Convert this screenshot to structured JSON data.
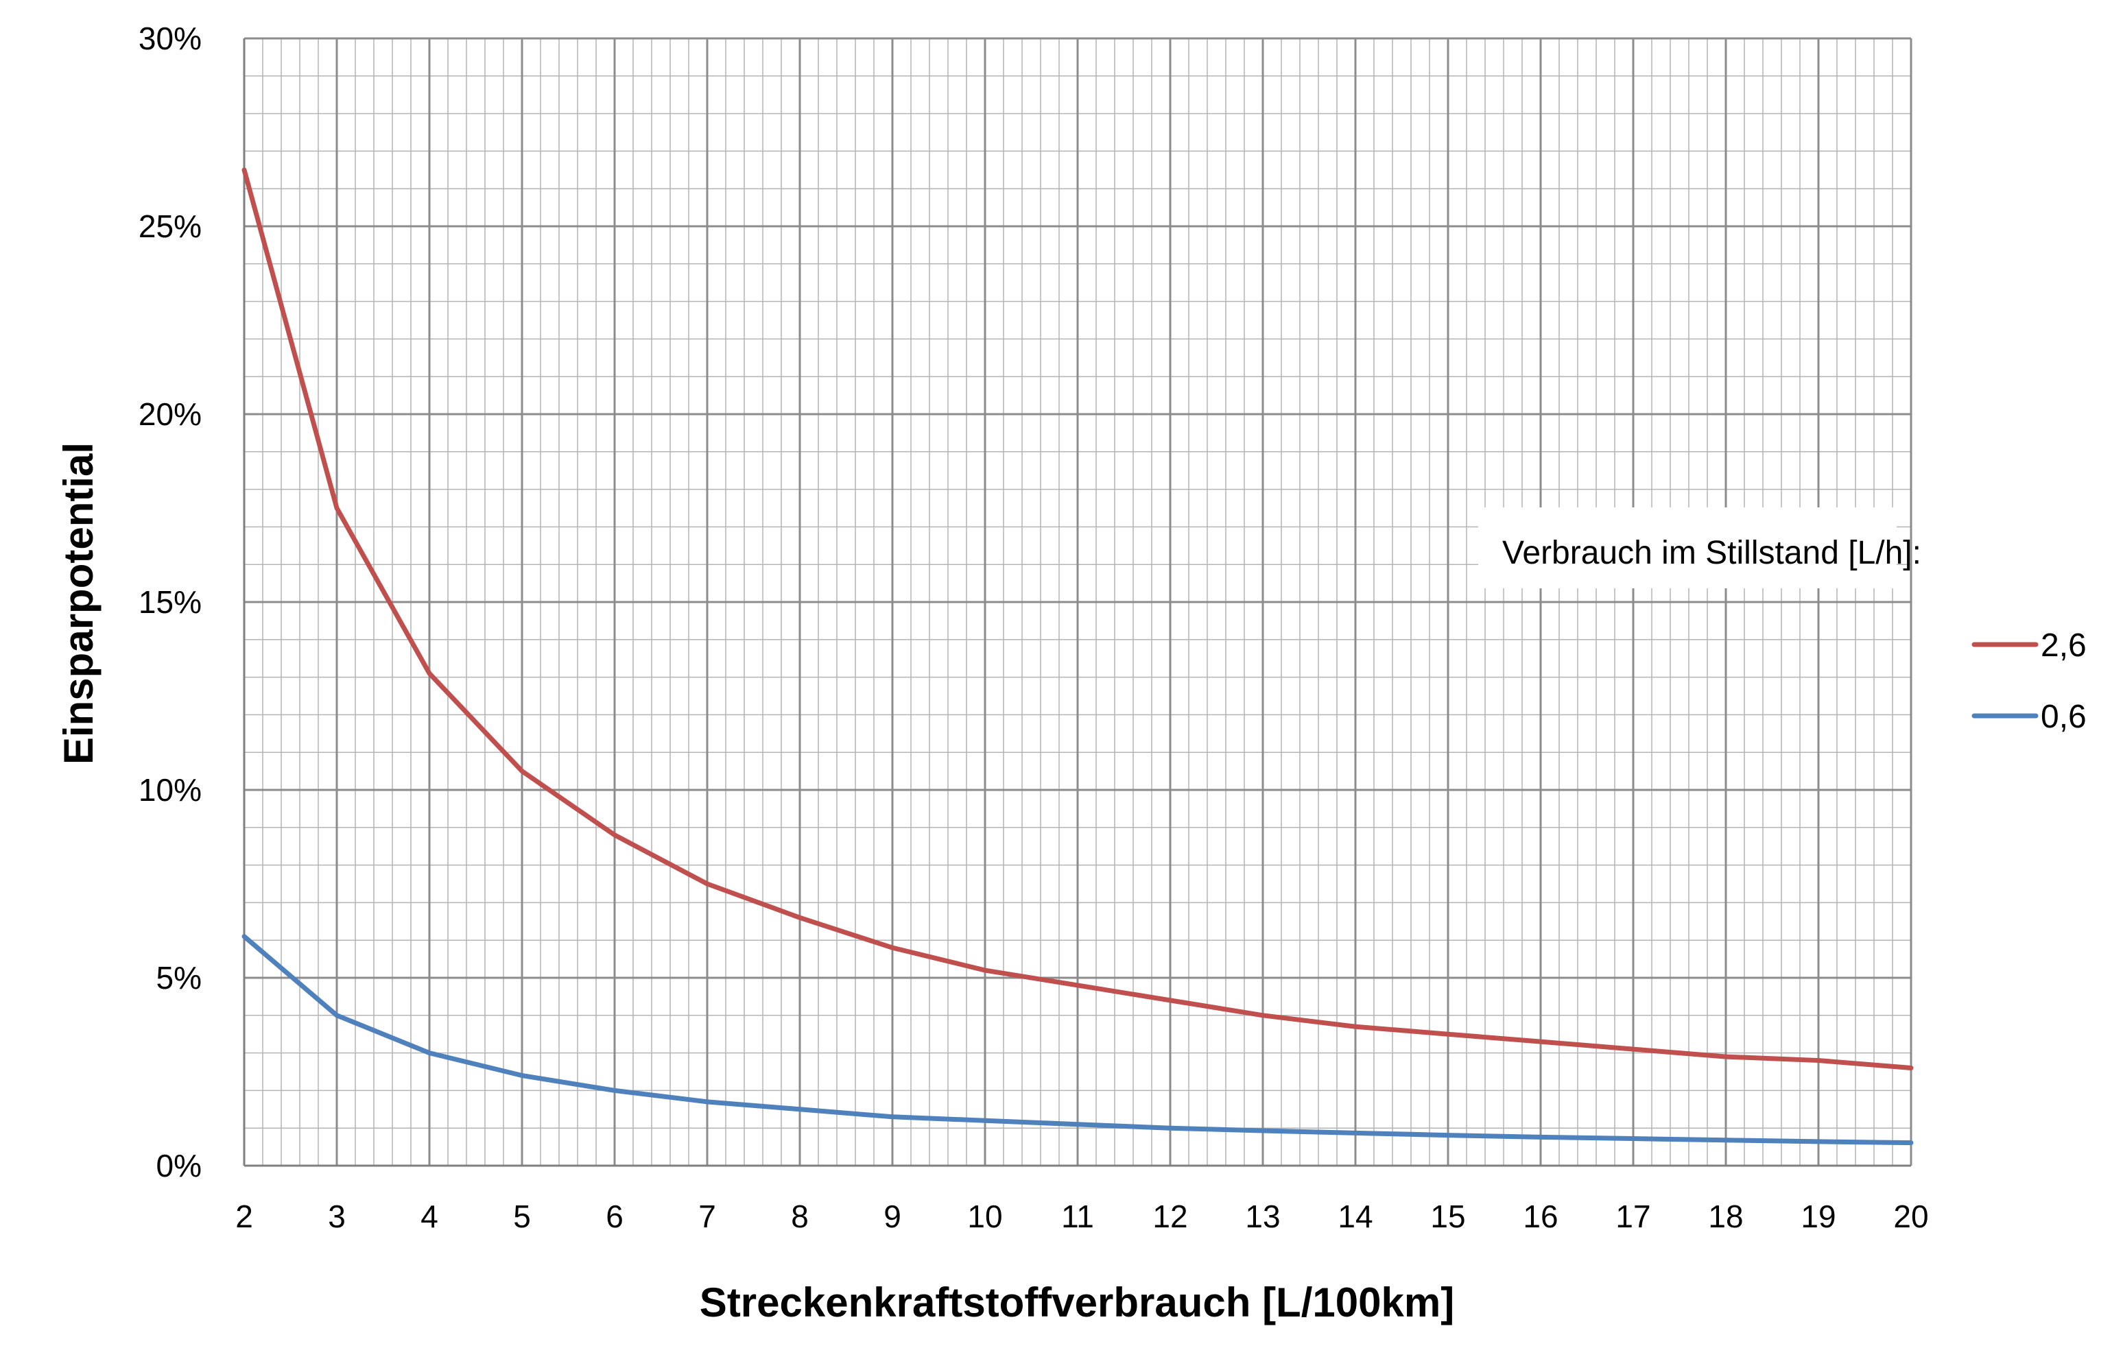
{
  "chart_data": {
    "type": "line",
    "title": "",
    "xlabel": "Streckenkraftstoffverbrauch [L/100km]",
    "ylabel": "Einsparpotential",
    "xlim": [
      2,
      20
    ],
    "ylim": [
      0,
      0.3
    ],
    "x_ticks": [
      "2",
      "3",
      "4",
      "5",
      "6",
      "7",
      "8",
      "9",
      "10",
      "11",
      "12",
      "13",
      "14",
      "15",
      "16",
      "17",
      "18",
      "19",
      "20"
    ],
    "y_ticks": [
      "0%",
      "5%",
      "10%",
      "15%",
      "20%",
      "25%",
      "30%"
    ],
    "grid": true,
    "legend": {
      "title": "Verbrauch im Stillstand [L/h]:",
      "placement": "right"
    },
    "x": [
      2,
      3,
      4,
      5,
      6,
      7,
      8,
      9,
      10,
      11,
      12,
      13,
      14,
      15,
      16,
      17,
      18,
      19,
      20
    ],
    "series": [
      {
        "name": "2,6",
        "color": "#c0504d",
        "values": [
          0.265,
          0.175,
          0.131,
          0.105,
          0.088,
          0.075,
          0.066,
          0.058,
          0.052,
          0.048,
          0.044,
          0.04,
          0.037,
          0.035,
          0.033,
          0.031,
          0.029,
          0.028,
          0.026
        ]
      },
      {
        "name": "0,6",
        "color": "#4f81bd",
        "values": [
          0.061,
          0.04,
          0.03,
          0.024,
          0.02,
          0.017,
          0.015,
          0.013,
          0.012,
          0.011,
          0.01,
          0.0093,
          0.0087,
          0.0081,
          0.0076,
          0.0072,
          0.0068,
          0.0064,
          0.0061
        ]
      }
    ]
  }
}
